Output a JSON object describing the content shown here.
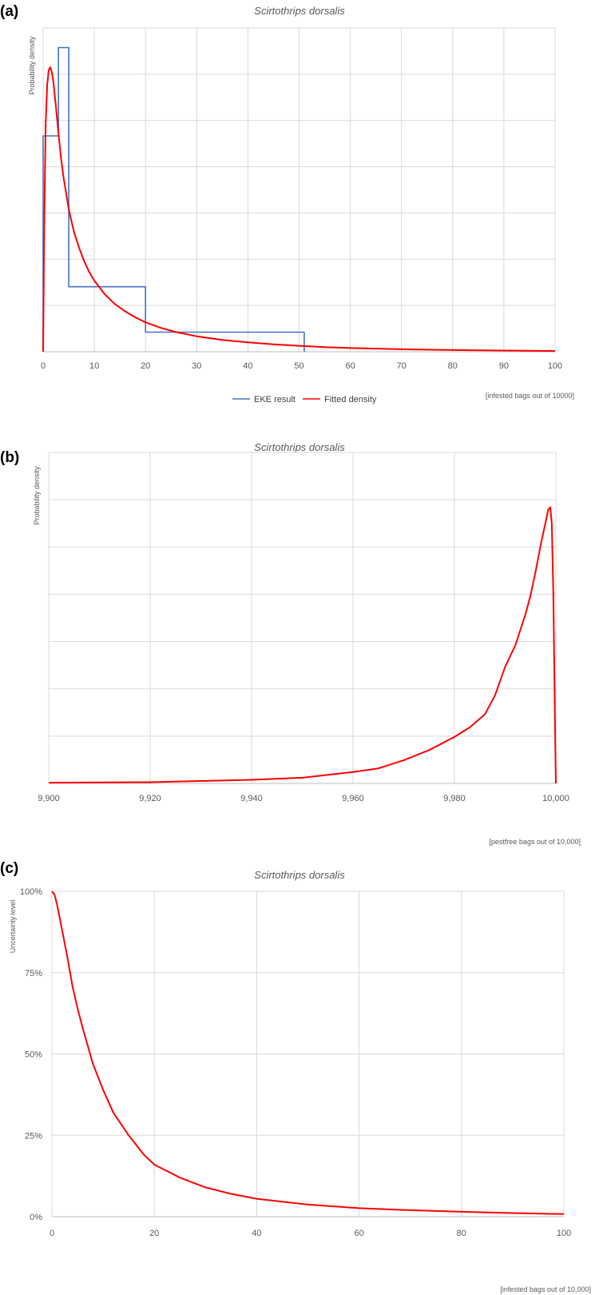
{
  "chart_data": [
    {
      "panel": "(a)",
      "type": "line",
      "title": "Scirtothrips dorsalis",
      "ylabel": "Probability density",
      "xlabel": "[infested bags out of 10000]",
      "xlim": [
        0,
        100
      ],
      "x_ticks": [
        0,
        10,
        20,
        30,
        40,
        50,
        60,
        70,
        80,
        90,
        100
      ],
      "x_tick_labels": [
        "0",
        "10",
        "20",
        "30",
        "40",
        "50",
        "60",
        "70",
        "80",
        "90",
        "100"
      ],
      "y_tick_labels": [],
      "grid": true,
      "legend": "bottom",
      "series": [
        {
          "name": "EKE result",
          "color": "#4472c4",
          "kind": "step",
          "x": [
            0,
            0,
            3,
            3,
            5,
            5,
            20,
            20,
            51,
            51
          ],
          "y": [
            0,
            0.088,
            0.088,
            0.124,
            0.124,
            0.0265,
            0.0265,
            0.008,
            0.008,
            0
          ]
        },
        {
          "name": "Fitted density",
          "color": "#ff0000",
          "kind": "line",
          "x": [
            0,
            0.2,
            0.5,
            0.8,
            1.1,
            1.4,
            1.7,
            2,
            2.5,
            3,
            3.5,
            4,
            5,
            6,
            7,
            8,
            9,
            10,
            12,
            14,
            16,
            18,
            20,
            23,
            26,
            30,
            35,
            40,
            45,
            50,
            55,
            60,
            70,
            80,
            90,
            100
          ],
          "y": [
            0,
            0.05,
            0.093,
            0.109,
            0.115,
            0.116,
            0.114,
            0.11,
            0.1,
            0.089,
            0.079,
            0.071,
            0.058,
            0.049,
            0.0425,
            0.037,
            0.0325,
            0.029,
            0.0235,
            0.0195,
            0.0165,
            0.014,
            0.012,
            0.0097,
            0.008,
            0.0063,
            0.0048,
            0.0038,
            0.003,
            0.0024,
            0.0019,
            0.0015,
            0.001,
            0.0007,
            0.0005,
            0.0003
          ]
        }
      ],
      "y_max": 0.132
    },
    {
      "panel": "(b)",
      "type": "line",
      "title": "Scirtothrips dorsalis",
      "ylabel": "Probability density",
      "xlabel": "[pestfree bags out of 10,000]",
      "xlim": [
        9900,
        10000
      ],
      "x_ticks": [
        9900,
        9920,
        9940,
        9960,
        9980,
        10000
      ],
      "x_tick_labels": [
        "9,900",
        "9,920",
        "9,940",
        "9,960",
        "9,980",
        "10,000"
      ],
      "y_tick_labels": [],
      "grid": true,
      "series": [
        {
          "name": "",
          "color": "#ff0000",
          "kind": "line",
          "x": [
            9900,
            9920,
            9940,
            9950,
            9960,
            9965,
            9970,
            9975,
            9980,
            9983,
            9986,
            9988,
            9990,
            9992,
            9994,
            9995,
            9996,
            9997,
            9998,
            9998.5,
            9998.9,
            9999.2,
            9999.5,
            9999.8,
            10000
          ],
          "y": [
            0.0003,
            0.0005,
            0.0015,
            0.0024,
            0.0048,
            0.0063,
            0.0097,
            0.014,
            0.0195,
            0.0235,
            0.029,
            0.037,
            0.049,
            0.058,
            0.071,
            0.079,
            0.089,
            0.1,
            0.11,
            0.115,
            0.116,
            0.109,
            0.08,
            0.03,
            0
          ]
        }
      ],
      "y_max": 0.139
    },
    {
      "panel": "(c)",
      "type": "line",
      "title": "Scirtothrips dorsalis",
      "ylabel": "Uncertainty level",
      "xlabel": "[infested bags out of 10,000]",
      "xlim": [
        0,
        100
      ],
      "ylim": [
        0,
        1
      ],
      "x_ticks": [
        0,
        20,
        40,
        60,
        80,
        100
      ],
      "x_tick_labels": [
        "0",
        "20",
        "40",
        "60",
        "80",
        "100"
      ],
      "y_ticks": [
        0,
        0.25,
        0.5,
        0.75,
        1
      ],
      "y_tick_labels": [
        "0%",
        "25%",
        "50%",
        "75%",
        "100%"
      ],
      "grid": true,
      "series": [
        {
          "name": "",
          "color": "#ff0000",
          "kind": "line",
          "x": [
            0,
            0.5,
            1,
            2,
            3,
            4,
            5,
            6,
            8,
            10,
            12,
            15,
            18,
            20,
            25,
            30,
            35,
            40,
            50,
            60,
            70,
            80,
            90,
            100
          ],
          "y": [
            1,
            0.99,
            0.96,
            0.88,
            0.8,
            0.71,
            0.64,
            0.58,
            0.47,
            0.39,
            0.32,
            0.25,
            0.19,
            0.16,
            0.12,
            0.09,
            0.07,
            0.055,
            0.037,
            0.026,
            0.02,
            0.015,
            0.011,
            0.008
          ]
        }
      ]
    }
  ],
  "legend": {
    "eke_label": "EKE result",
    "fitted_label": "Fitted density"
  }
}
